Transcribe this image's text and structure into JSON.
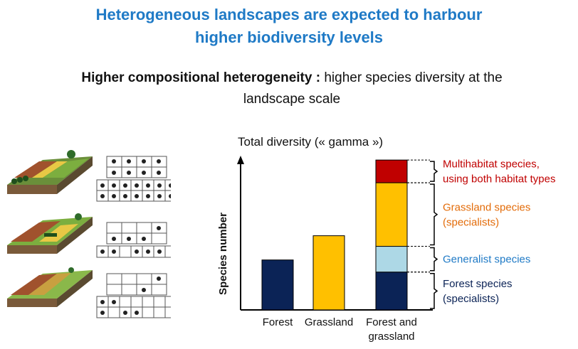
{
  "title": {
    "line1": "Heterogeneous landscapes are expected to harbour",
    "line2": "higher biodiversity levels"
  },
  "subtitle": {
    "bold": "Higher compositional heterogeneity :",
    "line1": " higher species diversity at the",
    "line2": "landscape scale"
  },
  "colors": {
    "title": "#1f7ac6",
    "forest_species": "#0b2356",
    "generalist_species": "#add8e6",
    "grassland_species": "#ffc000",
    "multihabitat_species": "#c00000",
    "grassland_label": "#e36c0a",
    "generalist_label": "#1f7ac6",
    "multihabitat_label": "#c00000",
    "forest_label": "#0b2356"
  },
  "landscapes": {
    "icons": [
      "forest-field-mosaic-landscape",
      "mixed-landscape",
      "farmland-landscape"
    ]
  },
  "chart_data": {
    "type": "bar",
    "stacked": true,
    "title": "Total diversity (« gamma »)",
    "xlabel": "",
    "ylabel": "Species number",
    "grid": false,
    "ylim": [
      0,
      100
    ],
    "categories": [
      "Forest",
      "Grassland",
      "Forest and\ngrassland"
    ],
    "series": [
      {
        "name": "Forest species\n(specialists)",
        "color": "#0b2356",
        "values": [
          33,
          0,
          25
        ]
      },
      {
        "name": "Grassland species\n(specialists)",
        "color": "#ffc000",
        "values": [
          0,
          49,
          0
        ]
      },
      {
        "name": "Generalist species",
        "color": "#add8e6",
        "values": [
          0,
          0,
          17
        ]
      },
      {
        "name": "Grassland species\n(specialists)",
        "color": "#ffc000",
        "values": [
          0,
          0,
          42
        ]
      },
      {
        "name": "Multihabitat species,\nusing both habitat types",
        "color": "#c00000",
        "values": [
          0,
          0,
          15
        ]
      }
    ],
    "annotations": [
      {
        "text": "Multihabitat species,\nusing both habitat types",
        "color": "#c00000"
      },
      {
        "text": "Grassland species\n(specialists)",
        "color": "#e36c0a"
      },
      {
        "text": "Generalist species",
        "color": "#1f7ac6"
      },
      {
        "text": "Forest species\n(specialists)",
        "color": "#0b2356"
      }
    ]
  }
}
